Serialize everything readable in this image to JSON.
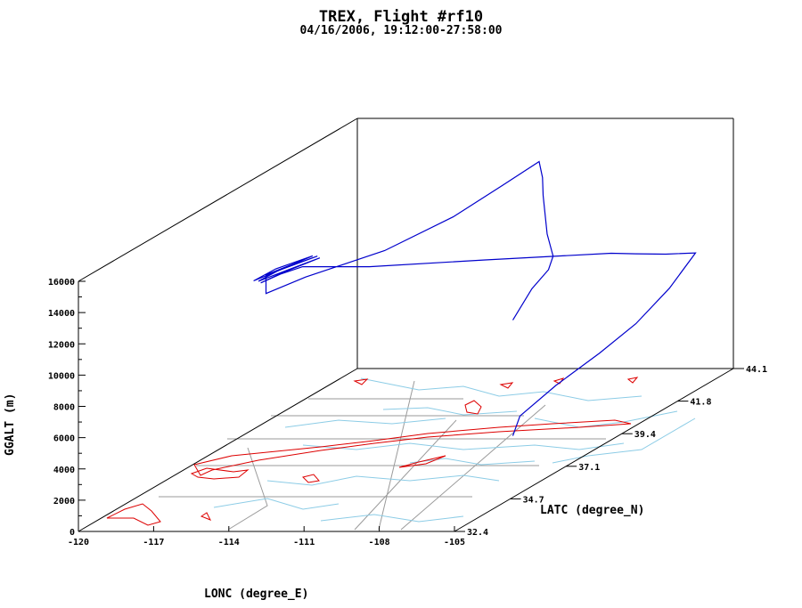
{
  "header": {
    "title": "TREX, Flight #rf10",
    "subtitle": "04/16/2006, 19:12:00-27:58:00"
  },
  "chart_data": {
    "type": "line3d",
    "title": "TREX, Flight #rf10",
    "subtitle": "04/16/2006, 19:12:00-27:58:00",
    "xlabel": "LONC (degree_E)",
    "ylabel": "LATC (degree_N)",
    "zlabel": "GGALT (m)",
    "xlim": [
      -120,
      -105
    ],
    "ylim": [
      32.4,
      44.1
    ],
    "zlim": [
      0,
      16000
    ],
    "xticks": [
      "-120",
      "-117",
      "-114",
      "-111",
      "-108",
      "-105"
    ],
    "yticks": [
      "32.4",
      "34.7",
      "37.1",
      "39.4",
      "41.8",
      "44.1"
    ],
    "zticks": [
      "0",
      "2000",
      "4000",
      "6000",
      "8000",
      "10000",
      "12000",
      "14000",
      "16000"
    ],
    "series": [
      {
        "color": "#0000cc",
        "points": [
          [
            -106.0,
            35.9,
            10400
          ],
          [
            -106.0,
            36.7,
            11700
          ],
          [
            -106.1,
            37.5,
            12200
          ],
          [
            -106.2,
            37.8,
            12800
          ],
          [
            -107.2,
            38.6,
            13500
          ],
          [
            -108.5,
            39.8,
            14900
          ],
          [
            -109.0,
            40.3,
            15600
          ],
          [
            -109.8,
            41.0,
            16000
          ],
          [
            -110.7,
            40.4,
            15000
          ],
          [
            -111.8,
            39.5,
            13800
          ],
          [
            -113.3,
            38.2,
            12800
          ],
          [
            -115.5,
            37.2,
            12000
          ],
          [
            -116.7,
            36.8,
            11300
          ],
          [
            -116.7,
            36.8,
            11900
          ],
          [
            -116.7,
            36.8,
            12500
          ],
          [
            -116.0,
            37.3,
            12800
          ],
          [
            -115.6,
            37.6,
            13000
          ],
          [
            -116.5,
            37.0,
            12700
          ],
          [
            -117.1,
            36.7,
            12200
          ],
          [
            -116.2,
            37.4,
            12600
          ],
          [
            -115.6,
            37.8,
            12800
          ],
          [
            -116.6,
            37.2,
            12400
          ],
          [
            -117.1,
            36.9,
            12000
          ],
          [
            -116.1,
            37.6,
            12400
          ],
          [
            -115.6,
            37.9,
            12600
          ],
          [
            -116.5,
            37.3,
            12200
          ],
          [
            -117.1,
            37.0,
            11800
          ],
          [
            -116.6,
            37.3,
            12100
          ],
          [
            -116.0,
            37.6,
            12300
          ],
          [
            -114.2,
            38.5,
            11500
          ],
          [
            -111.0,
            40.0,
            10600
          ],
          [
            -107.5,
            41.6,
            9600
          ],
          [
            -106.8,
            41.9,
            9300
          ],
          [
            -105.8,
            42.1,
            9100
          ],
          [
            -104.8,
            42.3,
            9000
          ],
          [
            -104.6,
            41.0,
            7900
          ],
          [
            -104.8,
            39.8,
            6700
          ],
          [
            -105.2,
            38.7,
            5800
          ],
          [
            -105.8,
            37.5,
            4800
          ],
          [
            -106.0,
            36.2,
            4000
          ],
          [
            -106.0,
            35.9,
            3000
          ]
        ]
      }
    ],
    "map_layers": [
      "state boundaries (gray)",
      "rivers (light blue)",
      "terrain outlines (red)"
    ]
  }
}
